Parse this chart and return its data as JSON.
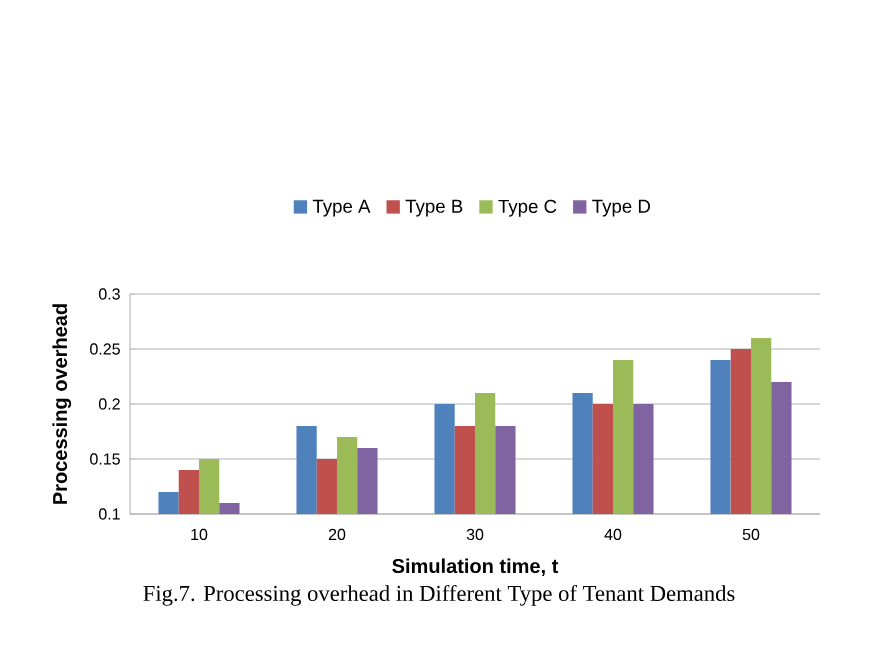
{
  "chart_data": {
    "type": "bar",
    "xlabel": "Simulation time, t",
    "ylabel": "Processing overhead",
    "categories": [
      "10",
      "20",
      "30",
      "40",
      "50"
    ],
    "series": [
      {
        "name": "Type A",
        "color": "#4f81bd",
        "values": [
          0.12,
          0.18,
          0.2,
          0.21,
          0.24
        ]
      },
      {
        "name": "Type B",
        "color": "#c0504d",
        "values": [
          0.14,
          0.15,
          0.18,
          0.2,
          0.25
        ]
      },
      {
        "name": "Type C",
        "color": "#9bbb59",
        "values": [
          0.15,
          0.17,
          0.21,
          0.24,
          0.26
        ]
      },
      {
        "name": "Type D",
        "color": "#8064a2",
        "values": [
          0.11,
          0.16,
          0.18,
          0.2,
          0.22
        ]
      }
    ],
    "ylim": [
      0.1,
      0.3
    ],
    "yticks": [
      0.1,
      0.15,
      0.2,
      0.25,
      0.3
    ],
    "grid": "y",
    "legend": "top",
    "annotations": [
      "Fig.7. Processing  overhead in Different Type of Tenant Demands"
    ]
  }
}
